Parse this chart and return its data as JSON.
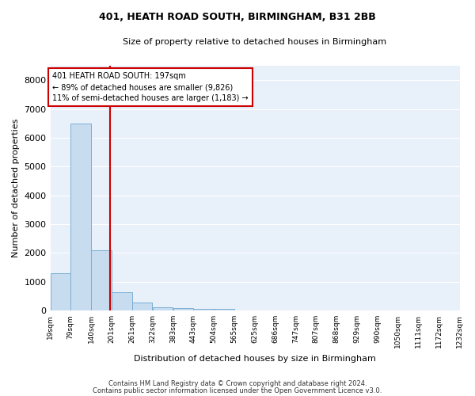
{
  "title": "401, HEATH ROAD SOUTH, BIRMINGHAM, B31 2BB",
  "subtitle": "Size of property relative to detached houses in Birmingham",
  "xlabel": "Distribution of detached houses by size in Birmingham",
  "ylabel": "Number of detached properties",
  "bar_color": "#C8DCF0",
  "bar_edge_color": "#7BAFD4",
  "bg_color": "#E8F0FA",
  "grid_color": "#FFFFFF",
  "annotation_line_color": "#CC0000",
  "annotation_box_text_line1": "401 HEATH ROAD SOUTH: 197sqm",
  "annotation_box_text_line2": "← 89% of detached houses are smaller (9,826)",
  "annotation_box_text_line3": "11% of semi-detached houses are larger (1,183) →",
  "property_sqm": 197,
  "bin_edges": [
    19,
    79,
    140,
    201,
    261,
    322,
    383,
    443,
    504,
    565,
    625,
    686,
    747,
    807,
    868,
    929,
    990,
    1050,
    1111,
    1172,
    1232
  ],
  "bar_heights": [
    1300,
    6500,
    2100,
    650,
    270,
    110,
    75,
    55,
    55,
    0,
    0,
    0,
    0,
    0,
    0,
    0,
    0,
    0,
    0,
    0
  ],
  "ylim": [
    0,
    8500
  ],
  "yticks": [
    0,
    1000,
    2000,
    3000,
    4000,
    5000,
    6000,
    7000,
    8000
  ],
  "footer_line1": "Contains HM Land Registry data © Crown copyright and database right 2024.",
  "footer_line2": "Contains public sector information licensed under the Open Government Licence v3.0."
}
